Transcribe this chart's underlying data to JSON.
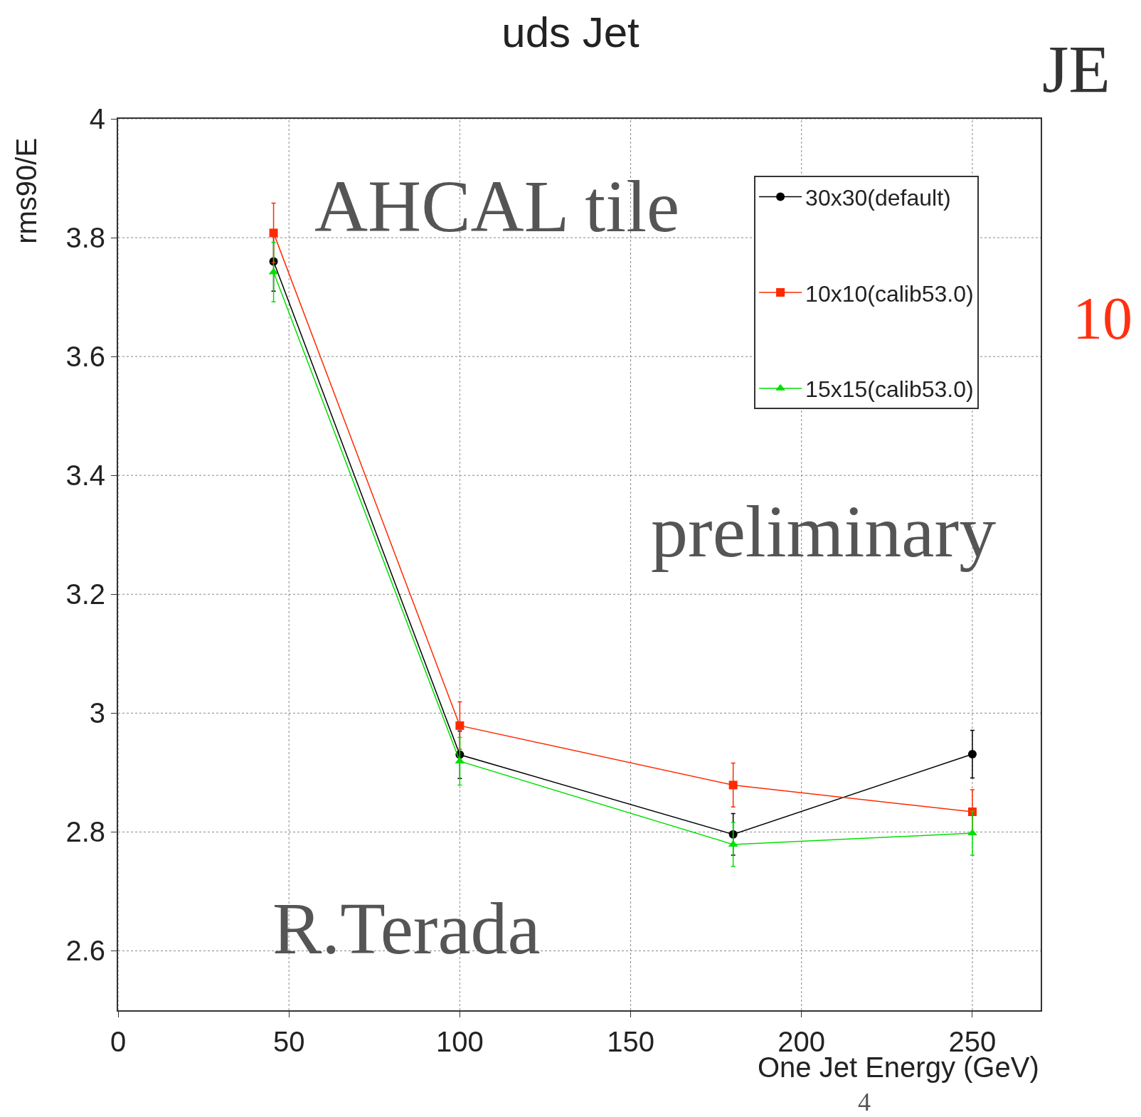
{
  "chart_data": {
    "type": "line",
    "title": "uds Jet",
    "xlabel": "One Jet Energy (GeV)",
    "ylabel": "rms90/E",
    "x": [
      45.5,
      100,
      180,
      250
    ],
    "series": [
      {
        "name": "30x30(default)",
        "color": "#000000",
        "marker": "circle",
        "values": [
          3.76,
          2.93,
          2.796,
          2.931
        ],
        "errors": [
          0.05,
          0.04,
          0.035,
          0.04
        ]
      },
      {
        "name": "10x10(calib53.0)",
        "color": "#ff2a00",
        "marker": "square",
        "values": [
          3.808,
          2.979,
          2.879,
          2.834
        ],
        "errors": [
          0.05,
          0.04,
          0.037,
          0.037
        ]
      },
      {
        "name": "15x15(calib53.0)",
        "color": "#00e000",
        "marker": "triangle",
        "values": [
          3.742,
          2.919,
          2.779,
          2.798
        ],
        "errors": [
          0.05,
          0.04,
          0.037,
          0.037
        ]
      }
    ],
    "xlim": [
      0,
      270
    ],
    "xticks": [
      0,
      50,
      100,
      150,
      200,
      250
    ],
    "ylim": [
      2.5,
      4
    ],
    "yticks": [
      2.6,
      2.8,
      3,
      3.2,
      3.4,
      3.6,
      3.8,
      4
    ],
    "grid": true,
    "legend": "top right",
    "annotations": [
      "AHCAL tile",
      "preliminary",
      "R.Terada",
      "JE",
      "10",
      "4"
    ]
  }
}
